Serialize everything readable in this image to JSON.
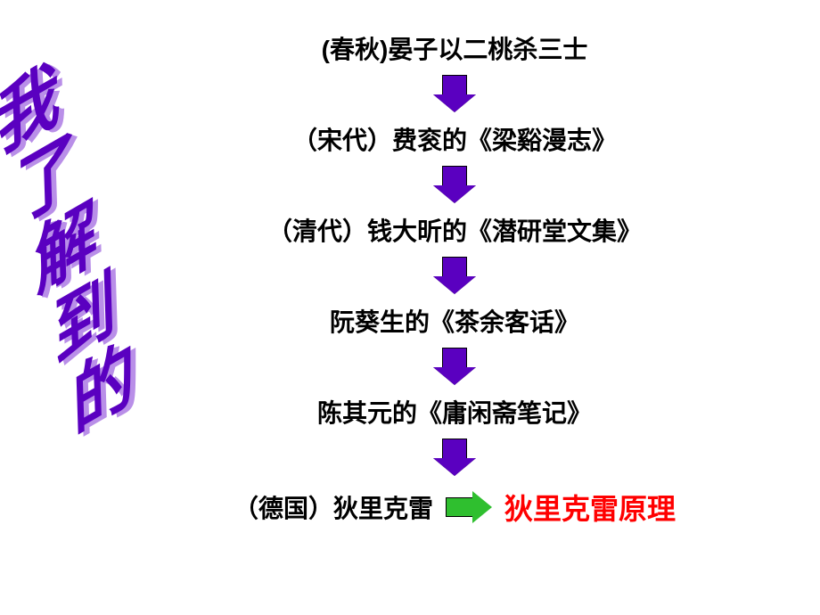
{
  "title": {
    "text": "我了解到的",
    "chars": [
      "我",
      "了",
      "解",
      "到",
      "的"
    ],
    "fontsize_pt": 58,
    "front_color": "#5a00c0",
    "shadow_color": "#b98fe8"
  },
  "flow": {
    "item_fontsize_pt": 28,
    "item_color": "#000000",
    "items": [
      "(春秋)晏子以二桃杀三士",
      "（宋代）费衮的《梁谿漫志》",
      "（清代）钱大昕的《潜研堂文集》",
      "阮葵生的《茶余客话》",
      "陈其元的《庸闲斋笔记》"
    ],
    "arrow_down": {
      "fill_color": "#5a00c0",
      "border_color": "#000000"
    }
  },
  "last": {
    "prefix": "（德国）",
    "name": "狄里克雷",
    "prefix_color": "#000000",
    "name_color": "#000000",
    "fontsize_pt": 28,
    "arrow_right": {
      "fill_color": "#2fbf2f",
      "border_color": "#000000"
    },
    "result": "狄里克雷原理",
    "result_color": "#ff0000",
    "result_fontsize_pt": 32
  },
  "background_color": "#ffffff"
}
